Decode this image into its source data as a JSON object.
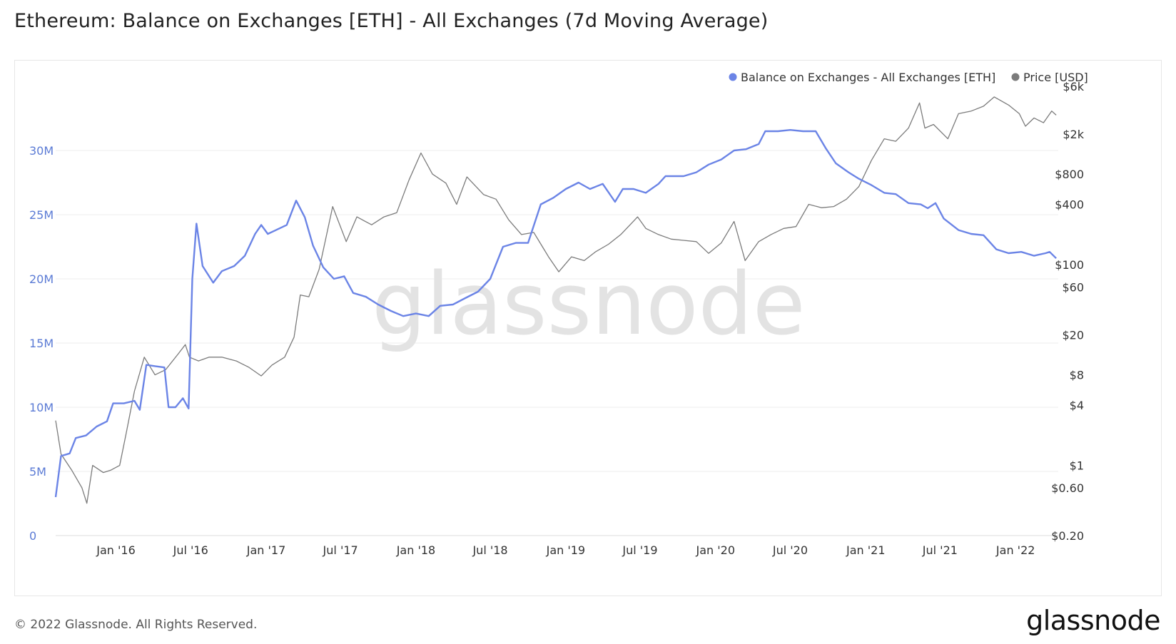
{
  "title": "Ethereum: Balance on Exchanges [ETH] - All Exchanges (7d Moving Average)",
  "footer": "© 2022 Glassnode. All Rights Reserved.",
  "brand": "glassnode",
  "watermark": "glassnode",
  "chart_data": {
    "type": "line",
    "title": "Ethereum: Balance on Exchanges [ETH] - All Exchanges (7d Moving Average)",
    "legend_position": "top-right",
    "grid": true,
    "x_ticks": [
      "Jan '16",
      "Jul '16",
      "Jan '17",
      "Jul '17",
      "Jan '18",
      "Jul '18",
      "Jan '19",
      "Jul '19",
      "Jan '20",
      "Jul '20",
      "Jan '21",
      "Jul '21",
      "Jan '22"
    ],
    "x_range": [
      "2015-08-07",
      "2022-04-15"
    ],
    "y_left": {
      "ticks": [
        "0",
        "5M",
        "10M",
        "15M",
        "20M",
        "25M",
        "30M"
      ],
      "range": [
        0,
        35000000
      ]
    },
    "y_right": {
      "scale": "log",
      "ticks": [
        "$0.20",
        "$0.60",
        "$1",
        "$4",
        "$8",
        "$20",
        "$60",
        "$100",
        "$400",
        "$800",
        "$2k",
        "$6k"
      ],
      "range": [
        0.2,
        6000
      ]
    },
    "series": [
      {
        "name": "Balance on Exchanges - All Exchanges [ETH]",
        "color": "#6b84e6",
        "axis": "left",
        "points": [
          [
            "2015-08-07",
            3000000
          ],
          [
            "2015-08-20",
            6200000
          ],
          [
            "2015-09-10",
            6400000
          ],
          [
            "2015-09-25",
            7600000
          ],
          [
            "2015-10-20",
            7800000
          ],
          [
            "2015-11-15",
            8500000
          ],
          [
            "2015-12-10",
            8900000
          ],
          [
            "2015-12-25",
            10300000
          ],
          [
            "2016-01-20",
            10300000
          ],
          [
            "2016-02-15",
            10500000
          ],
          [
            "2016-02-28",
            9800000
          ],
          [
            "2016-03-15",
            13300000
          ],
          [
            "2016-04-05",
            13200000
          ],
          [
            "2016-04-28",
            13100000
          ],
          [
            "2016-05-08",
            10000000
          ],
          [
            "2016-05-25",
            10000000
          ],
          [
            "2016-06-12",
            10700000
          ],
          [
            "2016-06-26",
            9900000
          ],
          [
            "2016-07-05",
            20000000
          ],
          [
            "2016-07-15",
            24300000
          ],
          [
            "2016-07-30",
            21000000
          ],
          [
            "2016-08-25",
            19700000
          ],
          [
            "2016-09-15",
            20600000
          ],
          [
            "2016-10-15",
            21000000
          ],
          [
            "2016-11-10",
            21800000
          ],
          [
            "2016-12-05",
            23500000
          ],
          [
            "2016-12-20",
            24200000
          ],
          [
            "2017-01-05",
            23500000
          ],
          [
            "2017-01-25",
            23800000
          ],
          [
            "2017-02-20",
            24200000
          ],
          [
            "2017-03-15",
            26100000
          ],
          [
            "2017-04-05",
            24800000
          ],
          [
            "2017-04-25",
            22600000
          ],
          [
            "2017-05-20",
            20900000
          ],
          [
            "2017-06-15",
            20000000
          ],
          [
            "2017-07-10",
            20200000
          ],
          [
            "2017-08-01",
            18900000
          ],
          [
            "2017-09-01",
            18600000
          ],
          [
            "2017-10-01",
            18000000
          ],
          [
            "2017-11-01",
            17500000
          ],
          [
            "2017-12-01",
            17100000
          ],
          [
            "2018-01-01",
            17300000
          ],
          [
            "2018-02-01",
            17100000
          ],
          [
            "2018-03-01",
            17900000
          ],
          [
            "2018-04-01",
            18000000
          ],
          [
            "2018-05-01",
            18500000
          ],
          [
            "2018-06-01",
            19000000
          ],
          [
            "2018-07-01",
            20000000
          ],
          [
            "2018-08-01",
            22500000
          ],
          [
            "2018-09-01",
            22800000
          ],
          [
            "2018-10-01",
            22800000
          ],
          [
            "2018-11-01",
            25800000
          ],
          [
            "2018-12-01",
            26300000
          ],
          [
            "2019-01-01",
            27000000
          ],
          [
            "2019-02-01",
            27500000
          ],
          [
            "2019-03-01",
            27000000
          ],
          [
            "2019-04-01",
            27400000
          ],
          [
            "2019-05-01",
            26000000
          ],
          [
            "2019-05-20",
            27000000
          ],
          [
            "2019-06-15",
            27000000
          ],
          [
            "2019-07-15",
            26700000
          ],
          [
            "2019-08-15",
            27400000
          ],
          [
            "2019-09-01",
            28000000
          ],
          [
            "2019-10-15",
            28000000
          ],
          [
            "2019-11-15",
            28300000
          ],
          [
            "2019-12-15",
            28900000
          ],
          [
            "2020-01-15",
            29300000
          ],
          [
            "2020-02-15",
            30000000
          ],
          [
            "2020-03-15",
            30100000
          ],
          [
            "2020-04-15",
            30500000
          ],
          [
            "2020-05-01",
            31500000
          ],
          [
            "2020-06-01",
            31500000
          ],
          [
            "2020-07-01",
            31600000
          ],
          [
            "2020-08-01",
            31500000
          ],
          [
            "2020-09-01",
            31500000
          ],
          [
            "2020-09-25",
            30200000
          ],
          [
            "2020-10-20",
            29000000
          ],
          [
            "2020-11-20",
            28300000
          ],
          [
            "2020-12-15",
            27800000
          ],
          [
            "2021-01-15",
            27300000
          ],
          [
            "2021-02-15",
            26700000
          ],
          [
            "2021-03-15",
            26600000
          ],
          [
            "2021-04-15",
            25900000
          ],
          [
            "2021-05-15",
            25800000
          ],
          [
            "2021-06-01",
            25500000
          ],
          [
            "2021-06-20",
            25900000
          ],
          [
            "2021-07-10",
            24700000
          ],
          [
            "2021-08-15",
            23800000
          ],
          [
            "2021-09-15",
            23500000
          ],
          [
            "2021-10-15",
            23400000
          ],
          [
            "2021-11-15",
            22300000
          ],
          [
            "2021-12-15",
            22000000
          ],
          [
            "2022-01-15",
            22100000
          ],
          [
            "2022-02-15",
            21800000
          ],
          [
            "2022-03-15",
            22000000
          ],
          [
            "2022-03-25",
            22100000
          ],
          [
            "2022-04-10",
            21600000
          ]
        ]
      },
      {
        "name": "Price [USD]",
        "color": "#7b7b7b",
        "axis": "right",
        "points": [
          [
            "2015-08-07",
            2.8
          ],
          [
            "2015-08-20",
            1.3
          ],
          [
            "2015-09-15",
            0.9
          ],
          [
            "2015-10-10",
            0.6
          ],
          [
            "2015-10-22",
            0.42
          ],
          [
            "2015-11-05",
            1.0
          ],
          [
            "2015-12-01",
            0.85
          ],
          [
            "2015-12-20",
            0.9
          ],
          [
            "2016-01-10",
            1.0
          ],
          [
            "2016-01-25",
            2.0
          ],
          [
            "2016-02-15",
            5.5
          ],
          [
            "2016-03-10",
            12
          ],
          [
            "2016-04-05",
            8
          ],
          [
            "2016-05-01",
            9
          ],
          [
            "2016-06-01",
            13
          ],
          [
            "2016-06-18",
            16
          ],
          [
            "2016-06-28",
            12
          ],
          [
            "2016-07-20",
            11
          ],
          [
            "2016-08-15",
            12
          ],
          [
            "2016-09-15",
            12
          ],
          [
            "2016-10-20",
            11
          ],
          [
            "2016-11-20",
            9.5
          ],
          [
            "2016-12-20",
            7.8
          ],
          [
            "2017-01-15",
            10
          ],
          [
            "2017-02-15",
            12
          ],
          [
            "2017-03-10",
            19
          ],
          [
            "2017-03-25",
            50
          ],
          [
            "2017-04-15",
            48
          ],
          [
            "2017-05-10",
            90
          ],
          [
            "2017-06-12",
            380
          ],
          [
            "2017-07-15",
            170
          ],
          [
            "2017-08-10",
            300
          ],
          [
            "2017-09-15",
            250
          ],
          [
            "2017-10-15",
            300
          ],
          [
            "2017-11-15",
            330
          ],
          [
            "2017-12-15",
            700
          ],
          [
            "2018-01-13",
            1300
          ],
          [
            "2018-02-10",
            800
          ],
          [
            "2018-03-15",
            650
          ],
          [
            "2018-04-10",
            400
          ],
          [
            "2018-05-05",
            750
          ],
          [
            "2018-06-15",
            500
          ],
          [
            "2018-07-15",
            450
          ],
          [
            "2018-08-15",
            280
          ],
          [
            "2018-09-15",
            200
          ],
          [
            "2018-10-15",
            210
          ],
          [
            "2018-11-20",
            120
          ],
          [
            "2018-12-15",
            85
          ],
          [
            "2019-01-15",
            120
          ],
          [
            "2019-02-15",
            110
          ],
          [
            "2019-03-15",
            135
          ],
          [
            "2019-04-15",
            160
          ],
          [
            "2019-05-15",
            200
          ],
          [
            "2019-06-25",
            300
          ],
          [
            "2019-07-15",
            230
          ],
          [
            "2019-08-15",
            200
          ],
          [
            "2019-09-15",
            180
          ],
          [
            "2019-10-15",
            175
          ],
          [
            "2019-11-15",
            170
          ],
          [
            "2019-12-15",
            130
          ],
          [
            "2020-01-15",
            165
          ],
          [
            "2020-02-15",
            270
          ],
          [
            "2020-03-13",
            110
          ],
          [
            "2020-04-15",
            170
          ],
          [
            "2020-05-15",
            200
          ],
          [
            "2020-06-15",
            230
          ],
          [
            "2020-07-15",
            240
          ],
          [
            "2020-08-15",
            400
          ],
          [
            "2020-09-15",
            370
          ],
          [
            "2020-10-15",
            380
          ],
          [
            "2020-11-15",
            450
          ],
          [
            "2020-12-15",
            600
          ],
          [
            "2021-01-15",
            1100
          ],
          [
            "2021-02-15",
            1800
          ],
          [
            "2021-03-15",
            1700
          ],
          [
            "2021-04-15",
            2300
          ],
          [
            "2021-05-12",
            4100
          ],
          [
            "2021-05-25",
            2300
          ],
          [
            "2021-06-15",
            2500
          ],
          [
            "2021-07-20",
            1800
          ],
          [
            "2021-08-15",
            3200
          ],
          [
            "2021-09-15",
            3400
          ],
          [
            "2021-10-15",
            3800
          ],
          [
            "2021-11-10",
            4700
          ],
          [
            "2021-12-15",
            3900
          ],
          [
            "2022-01-10",
            3200
          ],
          [
            "2022-01-25",
            2400
          ],
          [
            "2022-02-15",
            2900
          ],
          [
            "2022-03-10",
            2600
          ],
          [
            "2022-03-30",
            3400
          ],
          [
            "2022-04-10",
            3100
          ]
        ]
      }
    ]
  }
}
